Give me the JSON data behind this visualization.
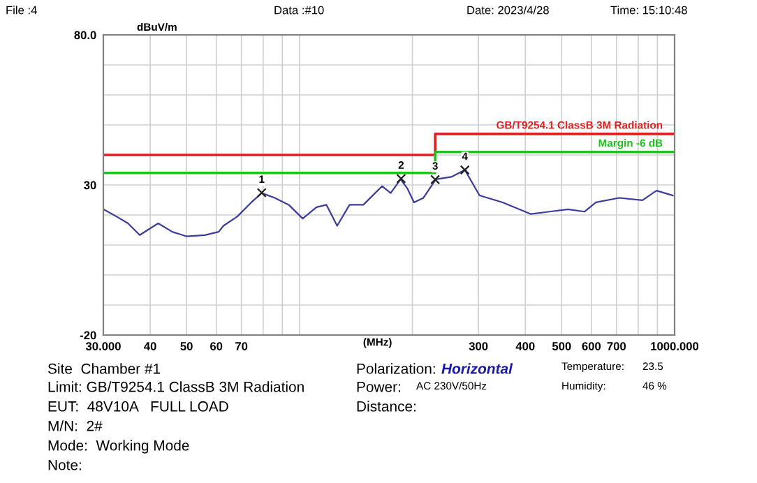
{
  "chart_data": {
    "type": "line",
    "ylabel": "dBuV/m",
    "xlabel": "(MHz)",
    "log": "x",
    "xlim": [
      30,
      1000
    ],
    "xticks": [
      {
        "value": 30,
        "label": "30.000"
      },
      40,
      50,
      60,
      70,
      {
        "value": 80,
        "label": null
      },
      {
        "value": 90,
        "label": null
      },
      {
        "value": 100,
        "label": null
      },
      {
        "value": 200,
        "label": null
      },
      300,
      400,
      500,
      600,
      700,
      {
        "value": 800,
        "label": null
      },
      {
        "value": 900,
        "label": null
      },
      {
        "value": 1000,
        "label": "1000.000"
      }
    ],
    "ylim": [
      -20,
      80
    ],
    "yticks": [
      {
        "value": -20,
        "label": "-20"
      },
      {
        "value": -10,
        "label": null
      },
      {
        "value": 0,
        "label": null
      },
      {
        "value": 10,
        "label": null
      },
      {
        "value": 20,
        "label": null
      },
      30,
      {
        "value": 40,
        "label": null
      },
      {
        "value": 50,
        "label": null
      },
      {
        "value": 60,
        "label": null
      },
      {
        "value": 70,
        "label": null
      },
      {
        "value": 80,
        "label": "80.0"
      }
    ],
    "grid": true,
    "series": [
      {
        "color": "#3c3c9c",
        "x": [
          30,
          32.5,
          34.9,
          37.5,
          42.0,
          45.8,
          49.9,
          55.9,
          60.9,
          62.7,
          68.3,
          74.4,
          79.3,
          85.9,
          93.6,
          102,
          111,
          118,
          126,
          136,
          148,
          166,
          175,
          186,
          194,
          202,
          214,
          231,
          254,
          276,
          302,
          348,
          414,
          464,
          520,
          575,
          617,
          712,
          821,
          895,
          989
        ],
        "values": [
          21.9,
          19.5,
          17.2,
          13.3,
          17.2,
          14.4,
          12.9,
          13.3,
          14.4,
          16.4,
          19.5,
          24.2,
          27.3,
          25.7,
          23.4,
          18.8,
          22.6,
          23.4,
          16.4,
          23.4,
          23.4,
          29.6,
          27.3,
          31.9,
          28.8,
          24.2,
          25.7,
          31.9,
          32.7,
          35.0,
          26.5,
          24.2,
          20.3,
          21.1,
          21.9,
          21.1,
          24.2,
          25.7,
          24.9,
          28.1,
          26.5
        ]
      },
      {
        "type": "scatter",
        "marker": "cross",
        "color": "#202020",
        "x": [
          79.3,
          186.6,
          230,
          276
        ],
        "values": [
          27.4,
          32.1,
          31.8,
          35.0
        ]
      },
      {
        "type": "line",
        "name": "GB/T9254.1 ClassB 3M Radiation",
        "color": "#e02020",
        "x": [
          30,
          230,
          230,
          1000
        ],
        "values": [
          40,
          40,
          47,
          47
        ]
      },
      {
        "type": "line",
        "name": "Margin -6 dB",
        "color": "#20c020",
        "x": [
          30,
          230,
          230,
          1000
        ],
        "values": [
          34,
          34,
          41,
          41
        ]
      }
    ],
    "annotations": [
      {
        "text": "1",
        "x": 79.3,
        "y": 27.4
      },
      {
        "text": "2",
        "x": 186.6,
        "y": 32.1
      },
      {
        "text": "3",
        "x": 230,
        "y": 31.8
      },
      {
        "text": "4",
        "x": 276,
        "y": 35.0
      },
      "File :4",
      "Data :#10",
      "Date: 2023/4/28",
      "Time: 15:10:48",
      "Site  Chamber #1",
      "Limit: GB/T9254.1 ClassB 3M Radiation",
      "EUT:  48V10A   FULL LOAD",
      "M/N:  2#",
      "Mode:  Working Mode",
      "Note:",
      "Polarization:",
      "Horizontal",
      "Power:",
      "AC 230V/50Hz",
      "Distance:",
      "Temperature:",
      "23.5",
      "Humidity:",
      "46 %"
    ]
  }
}
